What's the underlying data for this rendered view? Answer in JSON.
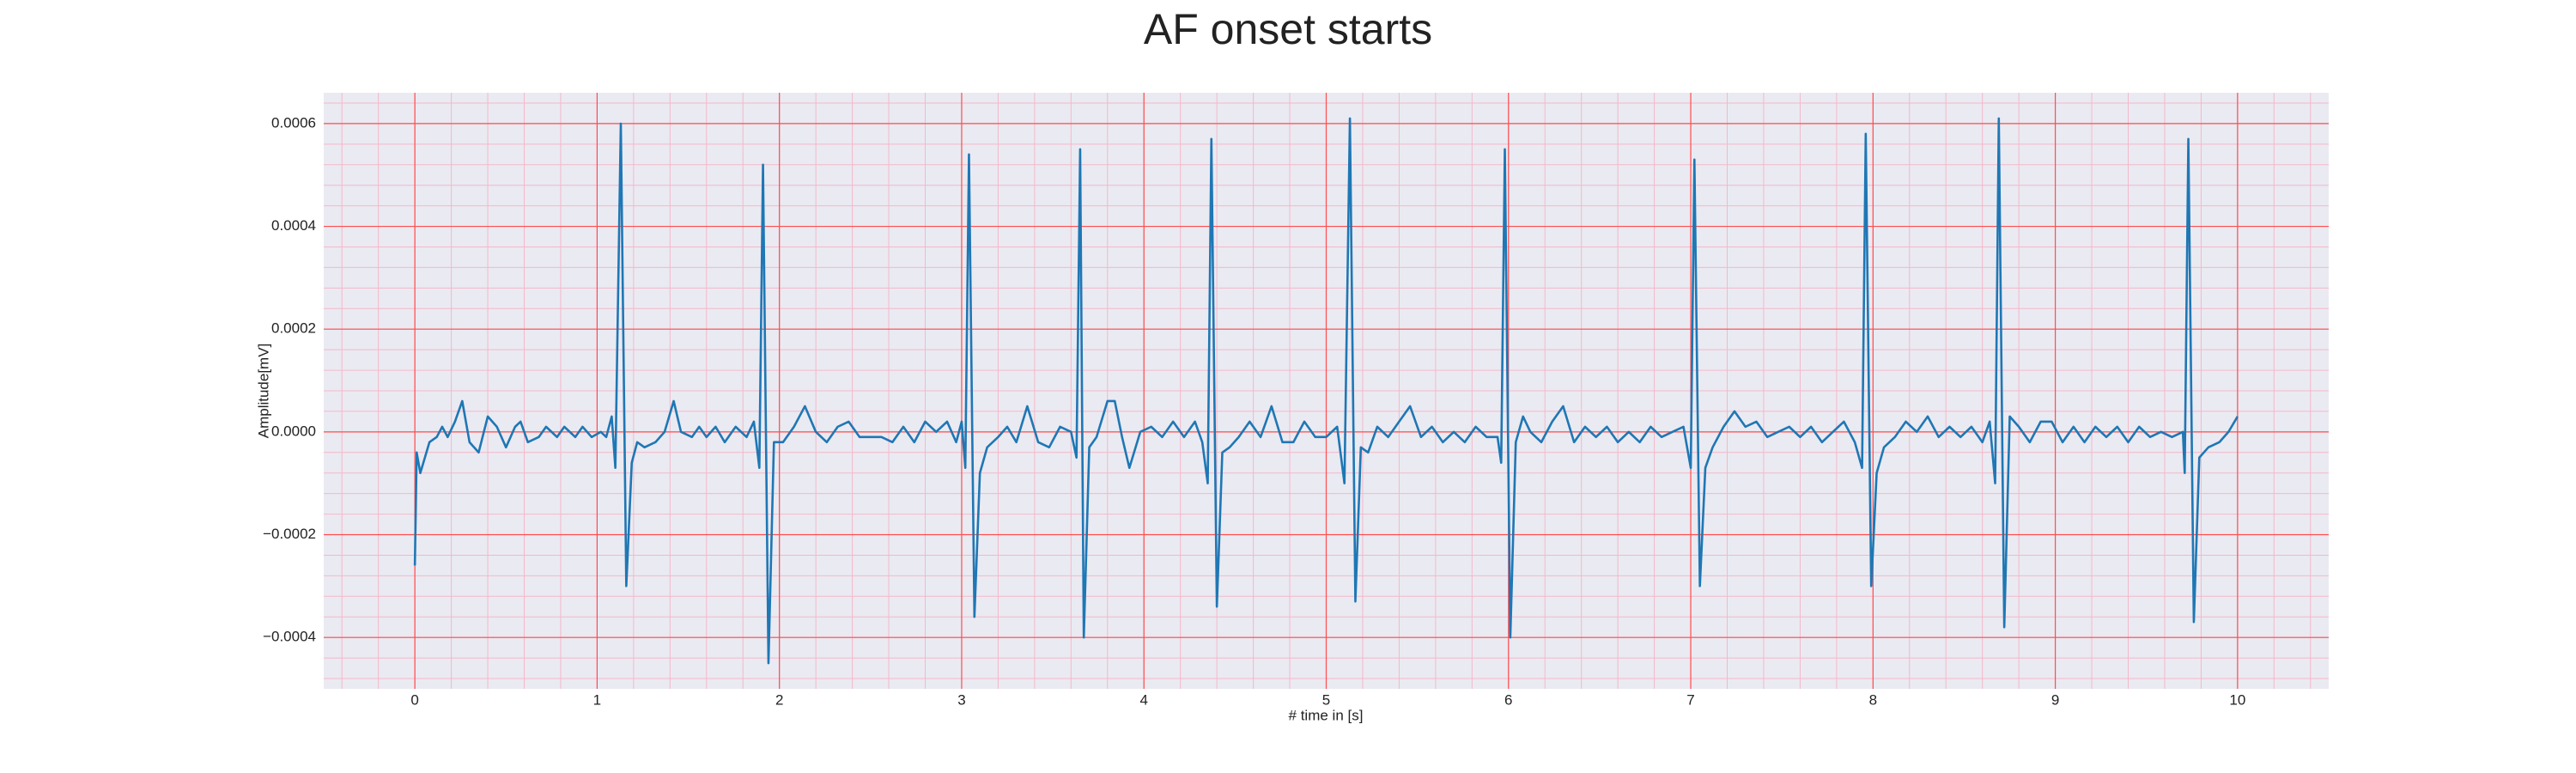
{
  "chart_data": {
    "type": "line",
    "title": "AF onset starts",
    "xlabel": "# time in [s]",
    "ylabel": "Amplitude[mV]",
    "xlim": [
      -0.5,
      10.5
    ],
    "ylim": [
      -0.0005,
      0.00066
    ],
    "xticks": [
      0,
      1,
      2,
      3,
      4,
      5,
      6,
      7,
      8,
      9,
      10
    ],
    "yticks": [
      {
        "value": -0.0004,
        "label": "−0.0004"
      },
      {
        "value": -0.0002,
        "label": "−0.0002"
      },
      {
        "value": 0,
        "label": "0.0000"
      },
      0.0002,
      0.0004,
      0.0006
    ],
    "grid": true,
    "minor_grid": true,
    "background": "#eaeaf2",
    "grid_color": "#ff4d4d",
    "minor_grid_color": "#f5b8c8",
    "x": [
      0.0,
      0.01,
      0.03,
      0.08,
      0.12,
      0.15,
      0.18,
      0.22,
      0.26,
      0.3,
      0.35,
      0.4,
      0.45,
      0.5,
      0.55,
      0.58,
      0.62,
      0.68,
      0.72,
      0.78,
      0.82,
      0.88,
      0.92,
      0.97,
      1.02,
      1.05,
      1.08,
      1.1,
      1.13,
      1.16,
      1.19,
      1.22,
      1.26,
      1.32,
      1.37,
      1.42,
      1.46,
      1.52,
      1.56,
      1.6,
      1.65,
      1.7,
      1.76,
      1.82,
      1.86,
      1.89,
      1.91,
      1.94,
      1.97,
      2.02,
      2.08,
      2.14,
      2.2,
      2.26,
      2.32,
      2.38,
      2.44,
      2.5,
      2.56,
      2.62,
      2.68,
      2.74,
      2.8,
      2.86,
      2.92,
      2.97,
      3.0,
      3.02,
      3.04,
      3.07,
      3.1,
      3.14,
      3.2,
      3.25,
      3.3,
      3.36,
      3.42,
      3.48,
      3.54,
      3.6,
      3.63,
      3.65,
      3.67,
      3.7,
      3.74,
      3.8,
      3.84,
      3.88,
      3.92,
      3.98,
      4.04,
      4.1,
      4.16,
      4.22,
      4.28,
      4.32,
      4.35,
      4.37,
      4.4,
      4.43,
      4.47,
      4.52,
      4.58,
      4.64,
      4.7,
      4.76,
      4.82,
      4.88,
      4.94,
      5.0,
      5.06,
      5.1,
      5.13,
      5.16,
      5.19,
      5.23,
      5.28,
      5.34,
      5.4,
      5.46,
      5.52,
      5.58,
      5.64,
      5.7,
      5.76,
      5.82,
      5.88,
      5.94,
      5.96,
      5.98,
      6.01,
      6.04,
      6.08,
      6.12,
      6.18,
      6.24,
      6.3,
      6.36,
      6.42,
      6.48,
      6.54,
      6.6,
      6.66,
      6.72,
      6.78,
      6.84,
      6.9,
      6.96,
      7.0,
      7.02,
      7.05,
      7.08,
      7.12,
      7.18,
      7.24,
      7.3,
      7.36,
      7.42,
      7.48,
      7.54,
      7.6,
      7.66,
      7.72,
      7.78,
      7.84,
      7.9,
      7.94,
      7.96,
      7.99,
      8.02,
      8.06,
      8.12,
      8.18,
      8.24,
      8.3,
      8.36,
      8.42,
      8.48,
      8.54,
      8.6,
      8.64,
      8.67,
      8.69,
      8.72,
      8.75,
      8.8,
      8.86,
      8.92,
      8.98,
      9.04,
      9.1,
      9.16,
      9.22,
      9.28,
      9.34,
      9.4,
      9.46,
      9.52,
      9.58,
      9.64,
      9.7,
      9.71,
      9.73,
      9.76,
      9.79,
      9.84,
      9.9,
      9.95,
      10.0
    ],
    "series": [
      {
        "color": "#1f77b4",
        "values": [
          -0.00026,
          -4e-05,
          -8e-05,
          -2e-05,
          -1e-05,
          1e-05,
          -1e-05,
          2e-05,
          6e-05,
          -2e-05,
          -4e-05,
          3e-05,
          1e-05,
          -3e-05,
          1e-05,
          2e-05,
          -2e-05,
          -1e-05,
          1e-05,
          -1e-05,
          1e-05,
          -1e-05,
          1e-05,
          -1e-05,
          0.0,
          -1e-05,
          3e-05,
          -7e-05,
          0.0006,
          -0.0003,
          -6e-05,
          -2e-05,
          -3e-05,
          -2e-05,
          0.0,
          6e-05,
          0.0,
          -1e-05,
          1e-05,
          -1e-05,
          1e-05,
          -2e-05,
          1e-05,
          -1e-05,
          2e-05,
          -7e-05,
          0.00052,
          -0.00045,
          -2e-05,
          -2e-05,
          1e-05,
          5e-05,
          0.0,
          -2e-05,
          1e-05,
          2e-05,
          -1e-05,
          -1e-05,
          -1e-05,
          -2e-05,
          1e-05,
          -2e-05,
          2e-05,
          0.0,
          2e-05,
          -2e-05,
          2e-05,
          -7e-05,
          0.00054,
          -0.00036,
          -8e-05,
          -3e-05,
          -1e-05,
          1e-05,
          -2e-05,
          5e-05,
          -2e-05,
          -3e-05,
          1e-05,
          0.0,
          -5e-05,
          0.00055,
          -0.0004,
          -3e-05,
          -1e-05,
          6e-05,
          6e-05,
          -1e-05,
          -7e-05,
          0.0,
          1e-05,
          -1e-05,
          2e-05,
          -1e-05,
          2e-05,
          -2e-05,
          -0.0001,
          0.00057,
          -0.00034,
          -4e-05,
          -3e-05,
          -1e-05,
          2e-05,
          -1e-05,
          5e-05,
          -2e-05,
          -2e-05,
          2e-05,
          -1e-05,
          -1e-05,
          1e-05,
          -0.0001,
          0.00061,
          -0.00033,
          -3e-05,
          -4e-05,
          1e-05,
          -1e-05,
          2e-05,
          5e-05,
          -1e-05,
          1e-05,
          -2e-05,
          0.0,
          -2e-05,
          1e-05,
          -1e-05,
          -1e-05,
          -6e-05,
          0.00055,
          -0.0004,
          -2e-05,
          3e-05,
          0.0,
          -2e-05,
          2e-05,
          5e-05,
          -2e-05,
          1e-05,
          -1e-05,
          1e-05,
          -2e-05,
          0.0,
          -2e-05,
          1e-05,
          -1e-05,
          0.0,
          1e-05,
          -7e-05,
          0.00053,
          -0.0003,
          -7e-05,
          -3e-05,
          1e-05,
          4e-05,
          1e-05,
          2e-05,
          -1e-05,
          0.0,
          1e-05,
          -1e-05,
          1e-05,
          -2e-05,
          0.0,
          2e-05,
          -2e-05,
          -7e-05,
          0.00058,
          -0.0003,
          -8e-05,
          -3e-05,
          -1e-05,
          2e-05,
          0.0,
          3e-05,
          -1e-05,
          1e-05,
          -1e-05,
          1e-05,
          -2e-05,
          2e-05,
          -0.0001,
          0.00061,
          -0.00038,
          3e-05,
          1e-05,
          -2e-05,
          2e-05,
          2e-05,
          -2e-05,
          1e-05,
          -2e-05,
          1e-05,
          -1e-05,
          1e-05,
          -2e-05,
          1e-05,
          -1e-05,
          0.0,
          -1e-05,
          0.0,
          -8e-05,
          0.00057,
          -0.00037,
          -5e-05,
          -3e-05,
          -2e-05,
          0.0,
          3e-05
        ]
      }
    ]
  }
}
